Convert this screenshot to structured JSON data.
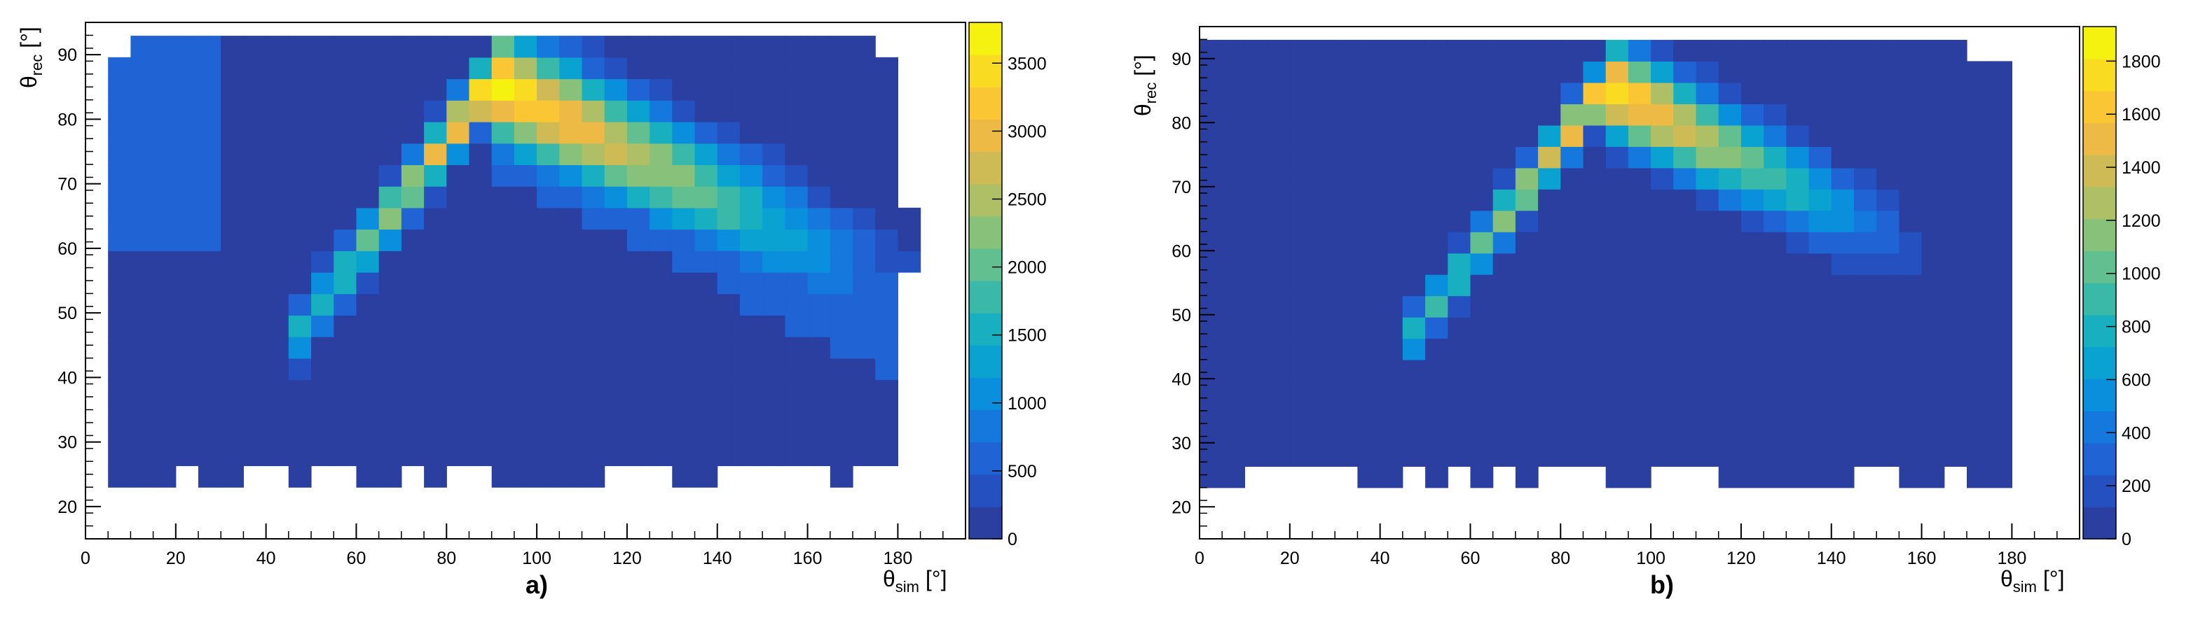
{
  "palette": [
    "#2a3f9f",
    "#2550c0",
    "#1f63d4",
    "#1478dc",
    "#0a8fdc",
    "#0aa2d0",
    "#18b0c0",
    "#3ab9a8",
    "#62c090",
    "#88c27a",
    "#aebf66",
    "#cfbb55",
    "#ecba45",
    "#fbc633",
    "#f9dc22",
    "#f5f20f"
  ],
  "chart_data": [
    {
      "type": "heatmap",
      "caption": "a)",
      "xlabel": {
        "symbol": "θ",
        "sub": "sim",
        "unit": " [°]"
      },
      "ylabel": {
        "symbol": "θ",
        "sub": "rec",
        "unit": " [°]"
      },
      "xlim": [
        0,
        195
      ],
      "ylim": [
        15,
        95
      ],
      "xticks": [
        "0",
        "20",
        "40",
        "60",
        "80",
        "100",
        "120",
        "140",
        "160",
        "180"
      ],
      "yticks": [
        "20",
        "30",
        "40",
        "50",
        "60",
        "70",
        "80",
        "90"
      ],
      "zmax": 3800,
      "zticks": [
        "0",
        "500",
        "1000",
        "1500",
        "2000",
        "2500",
        "3000",
        "3500"
      ],
      "bin_width": 5,
      "bin_height": 3.33,
      "x_range": [
        5,
        185
      ],
      "y_range_bins": [
        23,
        92
      ],
      "ridge_peak": [
        90,
        86
      ],
      "peak_value": 3700,
      "notes": "Bright diagonal ridge from (50,45) up to (90,86), then descending toward (160,60); uniform low background."
    },
    {
      "type": "heatmap",
      "caption": "b)",
      "xlabel": {
        "symbol": "θ",
        "sub": "sim",
        "unit": " [°]"
      },
      "ylabel": {
        "symbol": "θ",
        "sub": "rec",
        "unit": " [°]"
      },
      "xlim": [
        0,
        195
      ],
      "ylim": [
        15,
        95
      ],
      "xticks": [
        "0",
        "20",
        "40",
        "60",
        "80",
        "100",
        "120",
        "140",
        "160",
        "180"
      ],
      "yticks": [
        "20",
        "30",
        "40",
        "50",
        "60",
        "70",
        "80",
        "90"
      ],
      "zmax": 1930,
      "zticks": [
        "0",
        "200",
        "400",
        "600",
        "800",
        "1000",
        "1200",
        "1400",
        "1600",
        "1800"
      ],
      "bin_width": 5,
      "bin_height": 3.33,
      "x_range": [
        0,
        180
      ],
      "y_range_bins": [
        23,
        92
      ],
      "ridge_peak": [
        90,
        86
      ],
      "peak_value": 1850,
      "notes": "Narrower ridge from (48,45) up to (90,86), descending toward (150,62); sparse edges."
    }
  ]
}
